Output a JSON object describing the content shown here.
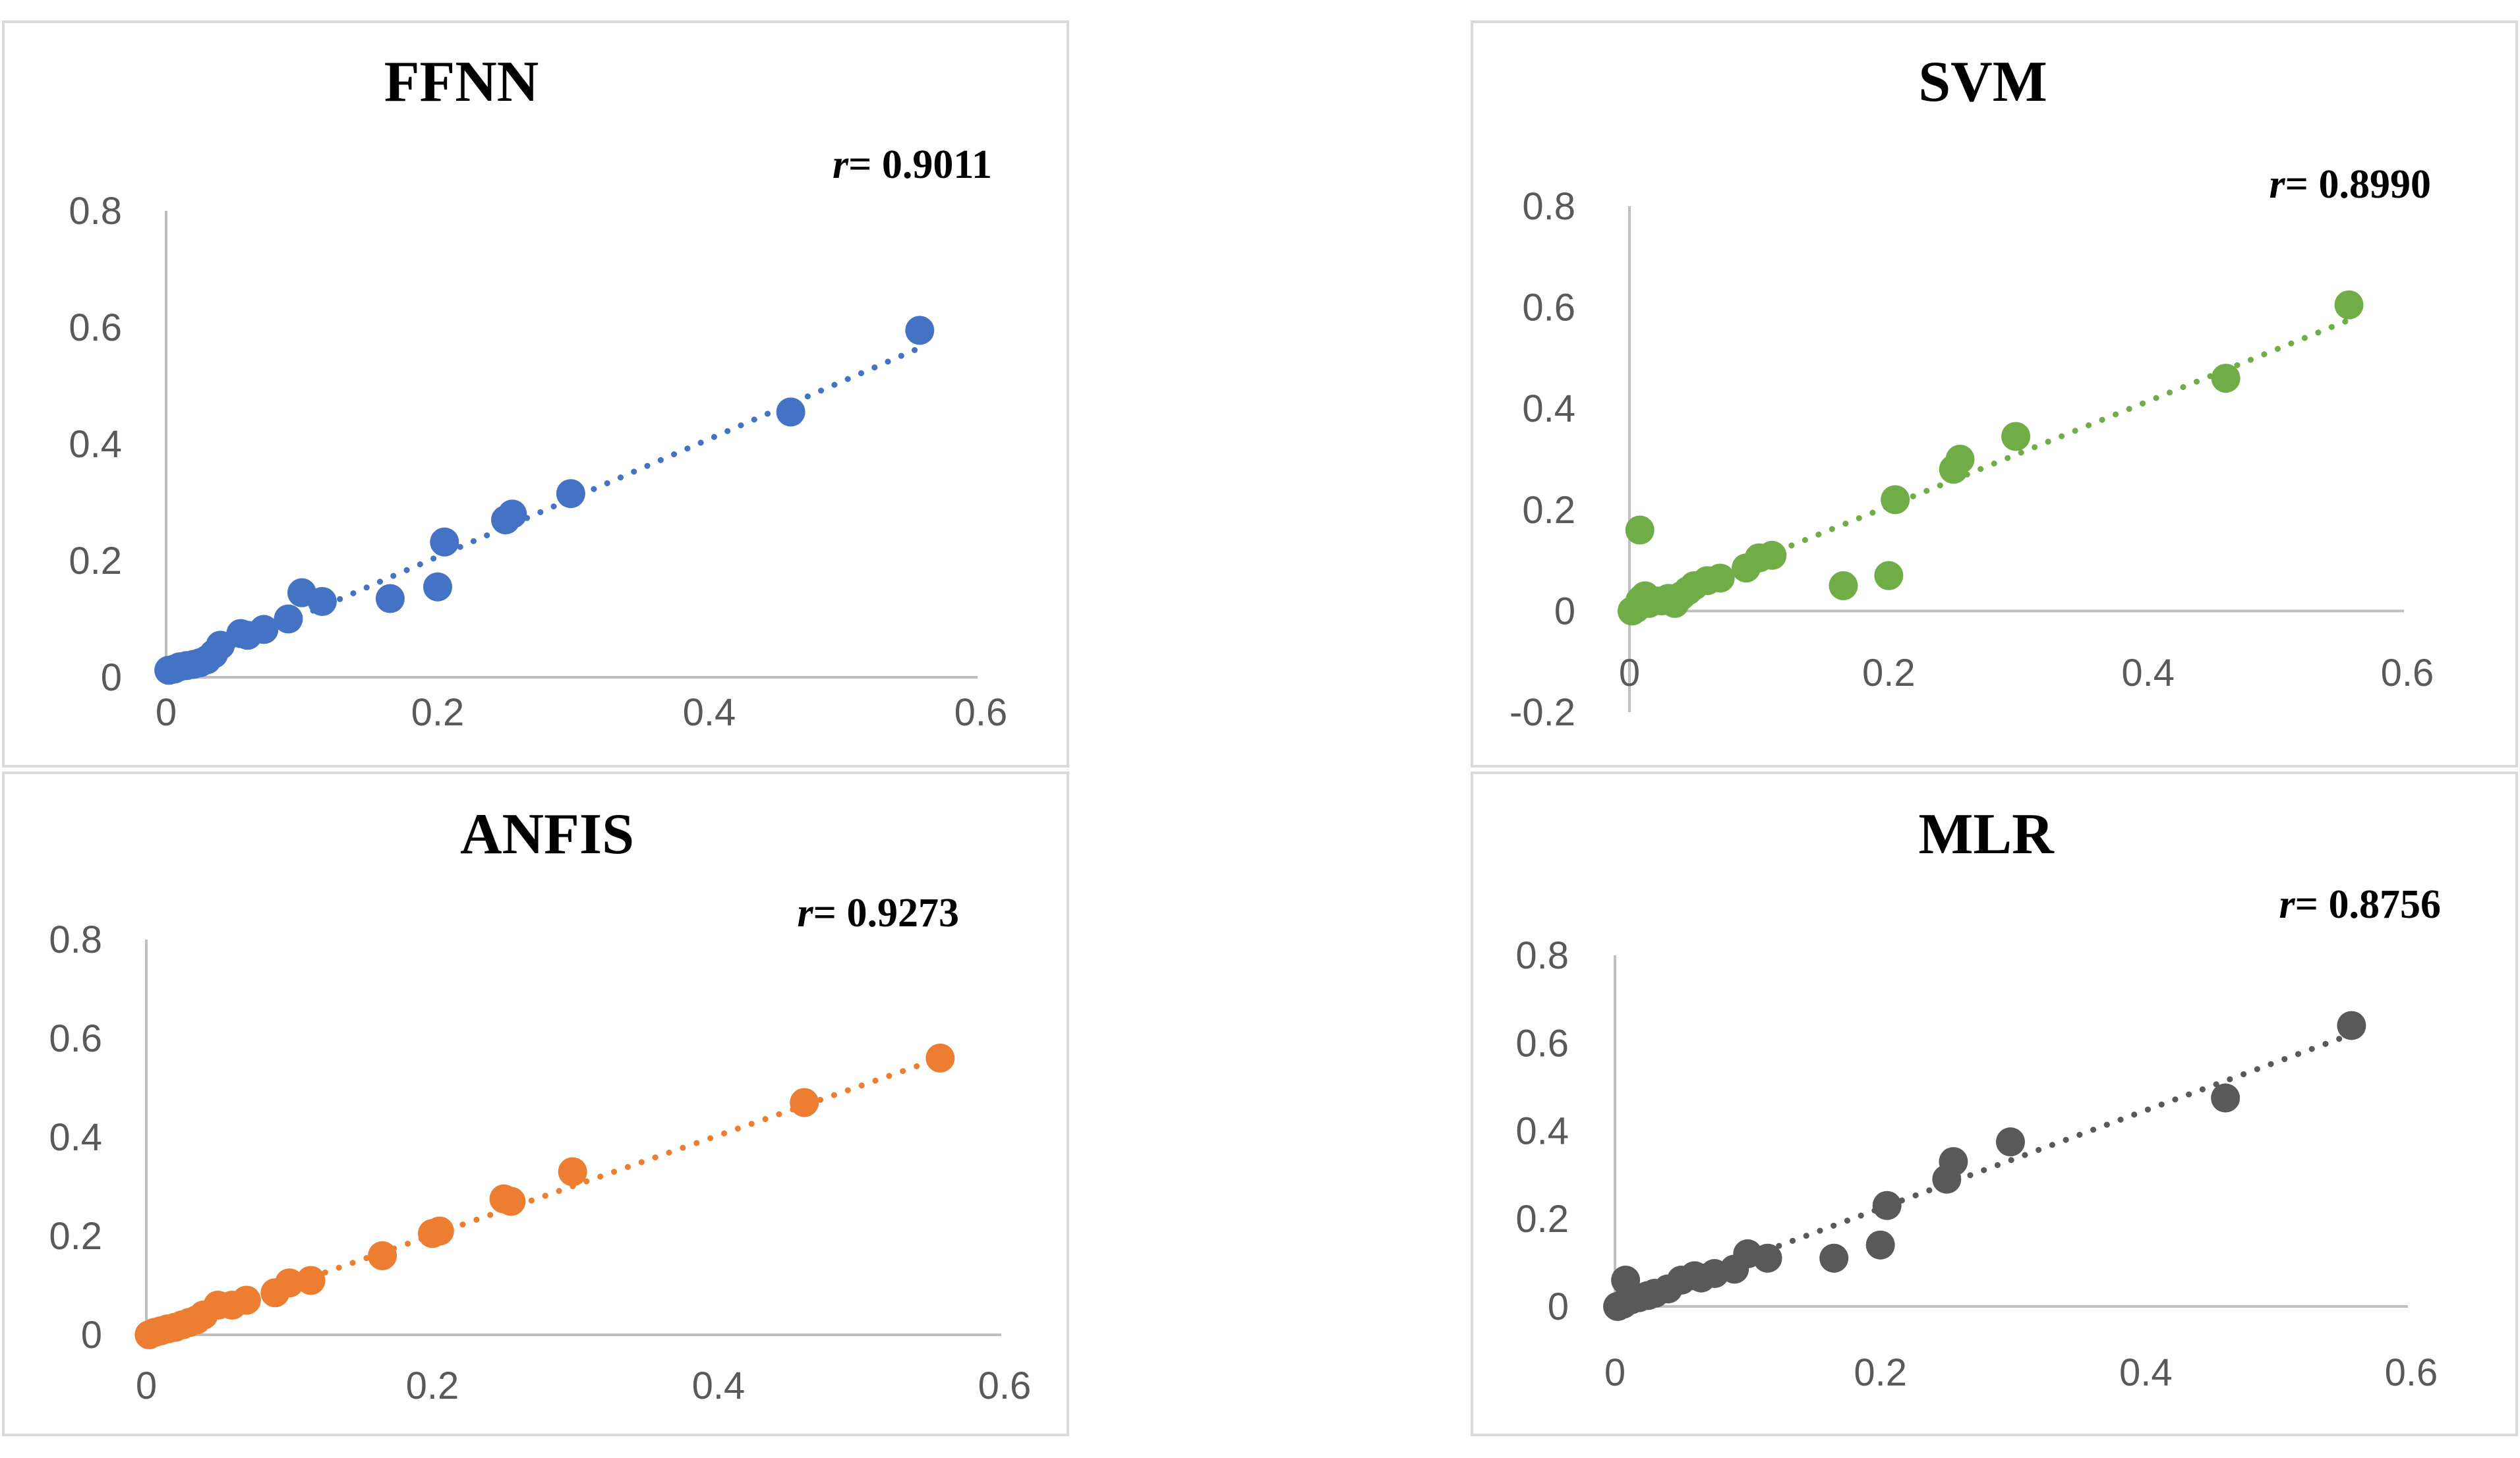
{
  "chart_data": [
    {
      "type": "scatter",
      "title": "FFNN",
      "r_label": "r",
      "r_value": "= 0.9011",
      "color": "#4472C4",
      "xlim": [
        0,
        0.6
      ],
      "ylim": [
        0,
        0.8
      ],
      "x_ticks": [
        "0",
        "0.2",
        "0.4",
        "0.6"
      ],
      "y_ticks": [
        "0",
        "0.2",
        "0.4",
        "0.6",
        "0.8"
      ],
      "trend": [
        [
          0,
          0.005
        ],
        [
          0.555,
          0.565
        ]
      ],
      "points": [
        [
          0.002,
          0.012
        ],
        [
          0.006,
          0.014
        ],
        [
          0.01,
          0.018
        ],
        [
          0.015,
          0.02
        ],
        [
          0.02,
          0.022
        ],
        [
          0.025,
          0.025
        ],
        [
          0.03,
          0.03
        ],
        [
          0.035,
          0.04
        ],
        [
          0.04,
          0.055
        ],
        [
          0.055,
          0.075
        ],
        [
          0.06,
          0.072
        ],
        [
          0.072,
          0.082
        ],
        [
          0.09,
          0.1
        ],
        [
          0.1,
          0.145
        ],
        [
          0.115,
          0.13
        ],
        [
          0.165,
          0.135
        ],
        [
          0.2,
          0.155
        ],
        [
          0.205,
          0.232
        ],
        [
          0.25,
          0.27
        ],
        [
          0.255,
          0.28
        ],
        [
          0.298,
          0.315
        ],
        [
          0.46,
          0.455
        ],
        [
          0.555,
          0.595
        ]
      ]
    },
    {
      "type": "scatter",
      "title": "SVM",
      "r_label": "r",
      "r_value": "= 0.8990",
      "color": "#70AD47",
      "xlim": [
        0,
        0.6
      ],
      "ylim": [
        -0.2,
        0.8
      ],
      "x_ticks": [
        "0",
        "0.2",
        "0.4",
        "0.6"
      ],
      "y_ticks": [
        "-0.2",
        "0",
        "0.2",
        "0.4",
        "0.6",
        "0.8"
      ],
      "trend": [
        [
          0,
          0.0
        ],
        [
          0.555,
          0.575
        ]
      ],
      "points": [
        [
          0.002,
          0.0
        ],
        [
          0.005,
          0.005
        ],
        [
          0.008,
          0.02
        ],
        [
          0.01,
          0.025
        ],
        [
          0.012,
          0.03
        ],
        [
          0.015,
          0.015
        ],
        [
          0.02,
          0.02
        ],
        [
          0.025,
          0.02
        ],
        [
          0.03,
          0.025
        ],
        [
          0.035,
          0.015
        ],
        [
          0.04,
          0.03
        ],
        [
          0.045,
          0.04
        ],
        [
          0.05,
          0.05
        ],
        [
          0.06,
          0.06
        ],
        [
          0.07,
          0.065
        ],
        [
          0.09,
          0.085
        ],
        [
          0.1,
          0.105
        ],
        [
          0.11,
          0.11
        ],
        [
          0.008,
          0.16
        ],
        [
          0.165,
          0.05
        ],
        [
          0.2,
          0.07
        ],
        [
          0.205,
          0.22
        ],
        [
          0.25,
          0.28
        ],
        [
          0.255,
          0.3
        ],
        [
          0.298,
          0.345
        ],
        [
          0.46,
          0.46
        ],
        [
          0.555,
          0.605
        ]
      ]
    },
    {
      "type": "scatter",
      "title": "ANFIS",
      "r_label": "r",
      "r_value": "= 0.9273",
      "color": "#ED7D31",
      "xlim": [
        0,
        0.6
      ],
      "ylim": [
        0,
        0.8
      ],
      "x_ticks": [
        "0",
        "0.2",
        "0.4",
        "0.6"
      ],
      "y_ticks": [
        "0",
        "0.2",
        "0.4",
        "0.6",
        "0.8"
      ],
      "trend": [
        [
          0,
          0.0
        ],
        [
          0.555,
          0.56
        ]
      ],
      "points": [
        [
          0.002,
          0.0
        ],
        [
          0.006,
          0.005
        ],
        [
          0.01,
          0.008
        ],
        [
          0.015,
          0.012
        ],
        [
          0.02,
          0.015
        ],
        [
          0.025,
          0.02
        ],
        [
          0.03,
          0.025
        ],
        [
          0.035,
          0.03
        ],
        [
          0.04,
          0.04
        ],
        [
          0.05,
          0.06
        ],
        [
          0.06,
          0.06
        ],
        [
          0.07,
          0.07
        ],
        [
          0.09,
          0.085
        ],
        [
          0.1,
          0.105
        ],
        [
          0.115,
          0.11
        ],
        [
          0.165,
          0.16
        ],
        [
          0.2,
          0.205
        ],
        [
          0.205,
          0.21
        ],
        [
          0.25,
          0.275
        ],
        [
          0.255,
          0.27
        ],
        [
          0.298,
          0.33
        ],
        [
          0.46,
          0.47
        ],
        [
          0.555,
          0.56
        ]
      ]
    },
    {
      "type": "scatter",
      "title": "MLR",
      "r_label": "r",
      "r_value": "= 0.8756",
      "color": "#595959",
      "xlim": [
        0,
        0.6
      ],
      "ylim": [
        0,
        0.8
      ],
      "x_ticks": [
        "0",
        "0.2",
        "0.4",
        "0.6"
      ],
      "y_ticks": [
        "0",
        "0.2",
        "0.4",
        "0.6",
        "0.8"
      ],
      "trend": [
        [
          0,
          0.0
        ],
        [
          0.555,
          0.62
        ]
      ],
      "points": [
        [
          0.002,
          0.0
        ],
        [
          0.006,
          0.005
        ],
        [
          0.008,
          0.06
        ],
        [
          0.012,
          0.015
        ],
        [
          0.018,
          0.02
        ],
        [
          0.025,
          0.025
        ],
        [
          0.03,
          0.03
        ],
        [
          0.04,
          0.04
        ],
        [
          0.05,
          0.06
        ],
        [
          0.06,
          0.07
        ],
        [
          0.065,
          0.065
        ],
        [
          0.075,
          0.075
        ],
        [
          0.09,
          0.085
        ],
        [
          0.1,
          0.12
        ],
        [
          0.115,
          0.11
        ],
        [
          0.165,
          0.11
        ],
        [
          0.2,
          0.14
        ],
        [
          0.205,
          0.23
        ],
        [
          0.25,
          0.29
        ],
        [
          0.255,
          0.33
        ],
        [
          0.298,
          0.375
        ],
        [
          0.46,
          0.475
        ],
        [
          0.555,
          0.64
        ]
      ]
    }
  ]
}
